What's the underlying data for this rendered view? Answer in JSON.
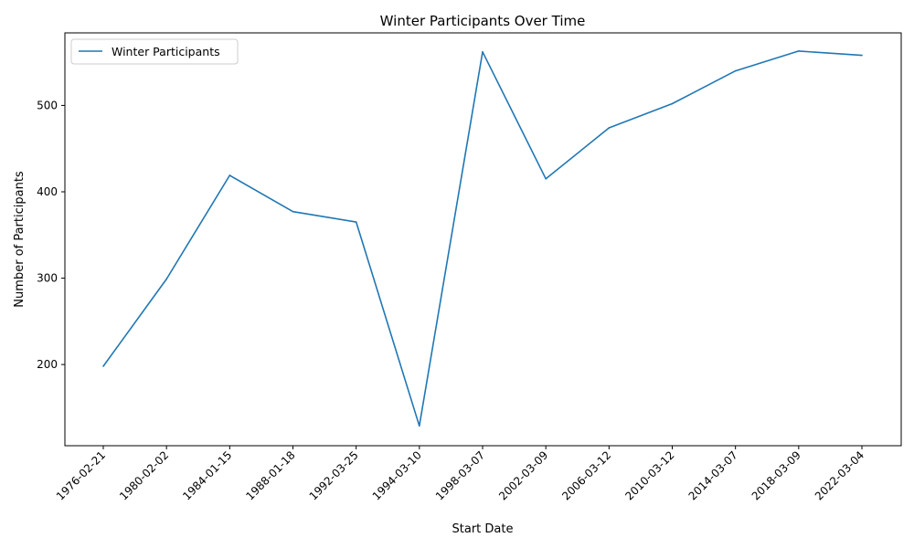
{
  "chart_data": {
    "type": "line",
    "title": "Winter Participants Over Time",
    "xlabel": "Start Date",
    "ylabel": "Number of Participants",
    "categories": [
      "1976-02-21",
      "1980-02-02",
      "1984-01-15",
      "1988-01-18",
      "1992-03-25",
      "1994-03-10",
      "1998-03-07",
      "2002-03-09",
      "2006-03-12",
      "2010-03-12",
      "2014-03-07",
      "2018-03-09",
      "2022-03-04"
    ],
    "series": [
      {
        "name": "Winter Participants",
        "color": "#1f77b4",
        "values": [
          198,
          299,
          419,
          377,
          365,
          129,
          562,
          415,
          474,
          502,
          540,
          563,
          558
        ]
      }
    ],
    "yticks": [
      200,
      300,
      400,
      500
    ],
    "ylim": [
      106,
      584
    ],
    "legend": "top-left",
    "grid": false
  }
}
